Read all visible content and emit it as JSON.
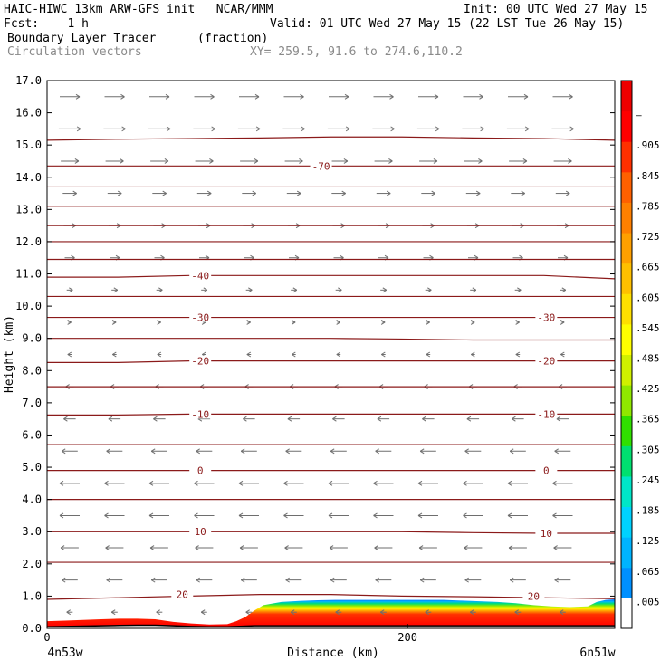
{
  "header": {
    "line1_left": "HAIC-HIWC 13km ARW-GFS init   NCAR/MMM",
    "line1_right": "Init: 00 UTC Wed 27 May 15",
    "line2_left": "Fcst:    1 h",
    "line2_right": "Valid: 01 UTC Wed 27 May 15 (22 LST Tue 26 May 15)",
    "line3_left": "Boundary Layer Tracer",
    "line3_mid": "(fraction)",
    "line4_left": "Circulation vectors",
    "line4_mid": "XY= 259.5, 91.6 to 274.6,110.2"
  },
  "chart_data": {
    "type": "heatmap",
    "xlabel": "Distance (km)",
    "ylabel": "Height (km)",
    "xlim": [
      0,
      315
    ],
    "ylim": [
      0,
      17
    ],
    "x_ticks": [
      {
        "value": 0,
        "label": "0"
      },
      {
        "value": 200,
        "label": "200"
      }
    ],
    "x_end_labels": {
      "left": "4n53w",
      "right": "6n51w"
    },
    "y_ticks": [
      "0.0",
      "1.0",
      "2.0",
      "3.0",
      "4.0",
      "5.0",
      "6.0",
      "7.0",
      "8.0",
      "9.0",
      "10.0",
      "11.0",
      "12.0",
      "13.0",
      "14.0",
      "15.0",
      "16.0",
      "17.0"
    ],
    "colorbar": {
      "labels": [
        ".005",
        ".065",
        ".125",
        ".185",
        ".245",
        ".305",
        ".365",
        ".425",
        ".485",
        ".545",
        ".605",
        ".665",
        ".725",
        ".785",
        ".845",
        ".905",
        "–"
      ],
      "colors": [
        "#ffffff",
        "#0090ff",
        "#00b4ff",
        "#00d2ff",
        "#00e6c8",
        "#00e070",
        "#30e000",
        "#90e800",
        "#d0f000",
        "#ffff00",
        "#ffe000",
        "#ffc000",
        "#ffa000",
        "#ff8000",
        "#ff6000",
        "#ff3000",
        "#ff0000",
        "#ee0000"
      ]
    },
    "temperature_contours": {
      "labels": [
        {
          "text": "20",
          "x": 75,
          "y": 1.05
        },
        {
          "text": "20",
          "x": 270,
          "y": 1.0
        },
        {
          "text": "10",
          "x": 85,
          "y": 3.0
        },
        {
          "text": "10",
          "x": 277,
          "y": 2.95
        },
        {
          "text": "0",
          "x": 85,
          "y": 4.9
        },
        {
          "text": "0",
          "x": 277,
          "y": 4.9
        },
        {
          "text": "-10",
          "x": 85,
          "y": 6.65
        },
        {
          "text": "-10",
          "x": 277,
          "y": 6.65
        },
        {
          "text": "-20",
          "x": 85,
          "y": 8.3
        },
        {
          "text": "-20",
          "x": 277,
          "y": 8.3
        },
        {
          "text": "-30",
          "x": 85,
          "y": 9.65
        },
        {
          "text": "-30",
          "x": 277,
          "y": 9.65
        },
        {
          "text": "-40",
          "x": 85,
          "y": 10.95
        },
        {
          "text": "-70",
          "x": 152,
          "y": 14.35
        }
      ],
      "levels_km": [
        [
          0.9,
          0.95,
          1.0,
          1.05,
          1.05,
          1.0,
          0.98,
          0.95,
          0.92
        ],
        [
          2.05,
          2.05,
          2.05,
          2.05,
          2.05,
          2.05,
          2.05,
          2.05,
          2.05
        ],
        [
          3.0,
          3.0,
          3.0,
          3.0,
          3.0,
          3.0,
          2.97,
          2.95,
          2.95
        ],
        [
          4.0,
          4.0,
          4.0,
          4.0,
          4.0,
          4.0,
          4.0,
          4.0,
          4.0
        ],
        [
          4.9,
          4.9,
          4.9,
          4.9,
          4.9,
          4.9,
          4.9,
          4.9,
          4.9
        ],
        [
          5.7,
          5.7,
          5.7,
          5.7,
          5.7,
          5.7,
          5.7,
          5.7,
          5.7
        ],
        [
          6.62,
          6.62,
          6.65,
          6.65,
          6.65,
          6.65,
          6.65,
          6.65,
          6.65
        ],
        [
          7.5,
          7.5,
          7.5,
          7.5,
          7.5,
          7.5,
          7.5,
          7.5,
          7.5
        ],
        [
          8.25,
          8.25,
          8.3,
          8.3,
          8.3,
          8.3,
          8.3,
          8.3,
          8.3
        ],
        [
          9.0,
          9.0,
          9.0,
          9.0,
          9.0,
          8.98,
          8.95,
          8.95,
          8.95
        ],
        [
          9.65,
          9.65,
          9.65,
          9.65,
          9.65,
          9.65,
          9.65,
          9.65,
          9.65
        ],
        [
          10.3,
          10.3,
          10.3,
          10.3,
          10.3,
          10.3,
          10.3,
          10.3,
          10.3
        ],
        [
          10.9,
          10.9,
          10.95,
          10.95,
          10.95,
          10.95,
          10.95,
          10.95,
          10.85
        ],
        [
          11.45,
          11.45,
          11.45,
          11.45,
          11.45,
          11.45,
          11.45,
          11.45,
          11.45
        ],
        [
          12.0,
          12.0,
          12.0,
          12.0,
          12.0,
          12.0,
          12.0,
          12.0,
          12.0
        ],
        [
          12.5,
          12.5,
          12.5,
          12.5,
          12.5,
          12.5,
          12.5,
          12.5,
          12.5
        ],
        [
          13.1,
          13.1,
          13.1,
          13.1,
          13.1,
          13.1,
          13.1,
          13.1,
          13.1
        ],
        [
          13.7,
          13.7,
          13.7,
          13.7,
          13.7,
          13.7,
          13.7,
          13.7,
          13.7
        ],
        [
          14.35,
          14.35,
          14.35,
          14.35,
          14.35,
          14.35,
          14.35,
          14.35,
          14.35
        ],
        [
          15.15,
          15.18,
          15.2,
          15.22,
          15.25,
          15.25,
          15.22,
          15.2,
          15.15
        ]
      ]
    },
    "tracer_surface": {
      "x": [
        0,
        10,
        20,
        30,
        40,
        50,
        60,
        70,
        80,
        90,
        100,
        105,
        110,
        115,
        120,
        130,
        140,
        150,
        160,
        170,
        180,
        190,
        200,
        210,
        220,
        230,
        240,
        250,
        260,
        270,
        280,
        290,
        300,
        305,
        310,
        315
      ],
      "top_km": [
        0.22,
        0.24,
        0.26,
        0.28,
        0.3,
        0.3,
        0.28,
        0.2,
        0.15,
        0.12,
        0.13,
        0.22,
        0.35,
        0.55,
        0.72,
        0.82,
        0.85,
        0.87,
        0.88,
        0.88,
        0.88,
        0.88,
        0.88,
        0.88,
        0.88,
        0.86,
        0.84,
        0.82,
        0.78,
        0.72,
        0.68,
        0.66,
        0.68,
        0.82,
        0.88,
        0.9
      ],
      "terrain_km": [
        0.05,
        0.06,
        0.07,
        0.08,
        0.09,
        0.1,
        0.1,
        0.08,
        0.06,
        0.05,
        0.05,
        0.06,
        0.07,
        0.08,
        0.08,
        0.08,
        0.08,
        0.08,
        0.08,
        0.08,
        0.08,
        0.08,
        0.08,
        0.08,
        0.08,
        0.08,
        0.08,
        0.08,
        0.08,
        0.08,
        0.08,
        0.08,
        0.08,
        0.08,
        0.08,
        0.08
      ]
    },
    "wind_vectors": {
      "levels_km": [
        0.5,
        1.5,
        2.5,
        3.5,
        4.5,
        5.5,
        6.5,
        7.5,
        8.5,
        9.5,
        10.5,
        11.5,
        12.5,
        13.5,
        14.5,
        15.5,
        16.5
      ],
      "u": [
        -0.3,
        -0.8,
        -0.9,
        -1.0,
        -1.0,
        -0.8,
        -0.6,
        -0.4,
        -0.2,
        0.15,
        0.3,
        0.5,
        0.6,
        0.7,
        0.9,
        1.1,
        1.0
      ]
    }
  }
}
